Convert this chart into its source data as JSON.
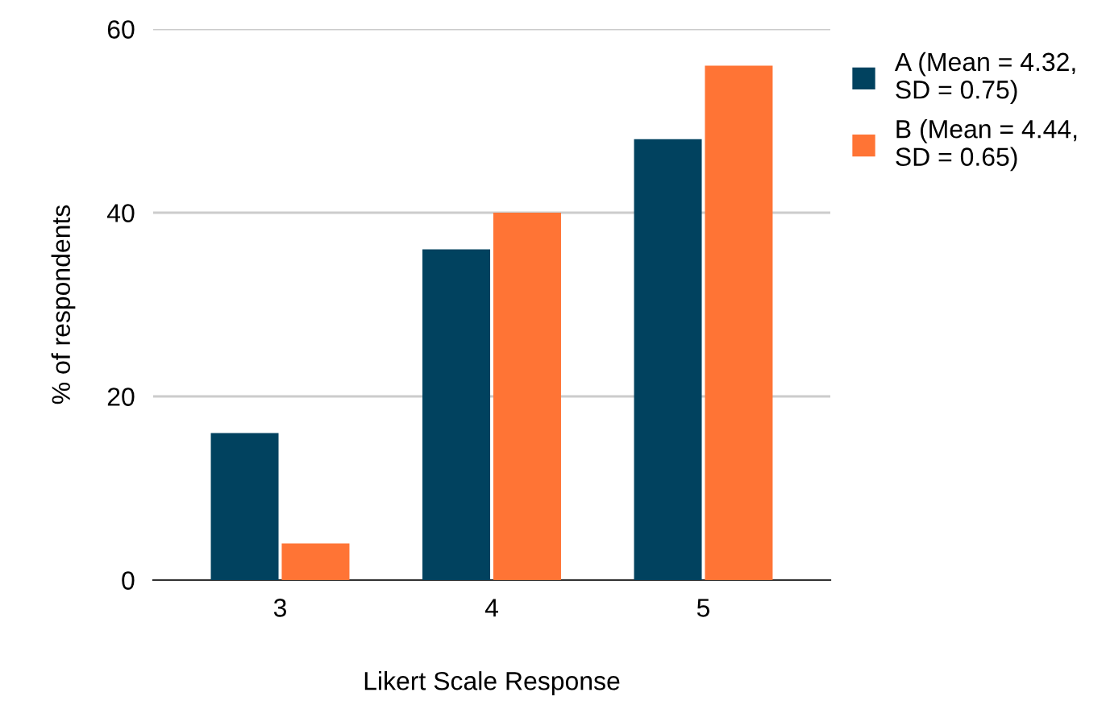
{
  "chart_data": {
    "type": "bar",
    "xlabel": "Likert Scale Response",
    "ylabel": "% of respondents",
    "categories": [
      "3",
      "4",
      "5"
    ],
    "series": [
      {
        "name": "A (Mean = 4.32,\nSD = 0.75)",
        "color": "#01425f",
        "values": [
          16,
          36,
          48
        ]
      },
      {
        "name": "B (Mean = 4.44,\nSD = 0.65)",
        "color": "#ff7435",
        "values": [
          4,
          40,
          56
        ]
      }
    ],
    "ylim": [
      0,
      60
    ],
    "yticks": [
      0,
      20,
      40,
      60
    ],
    "grid": "y",
    "legend": "top right"
  }
}
